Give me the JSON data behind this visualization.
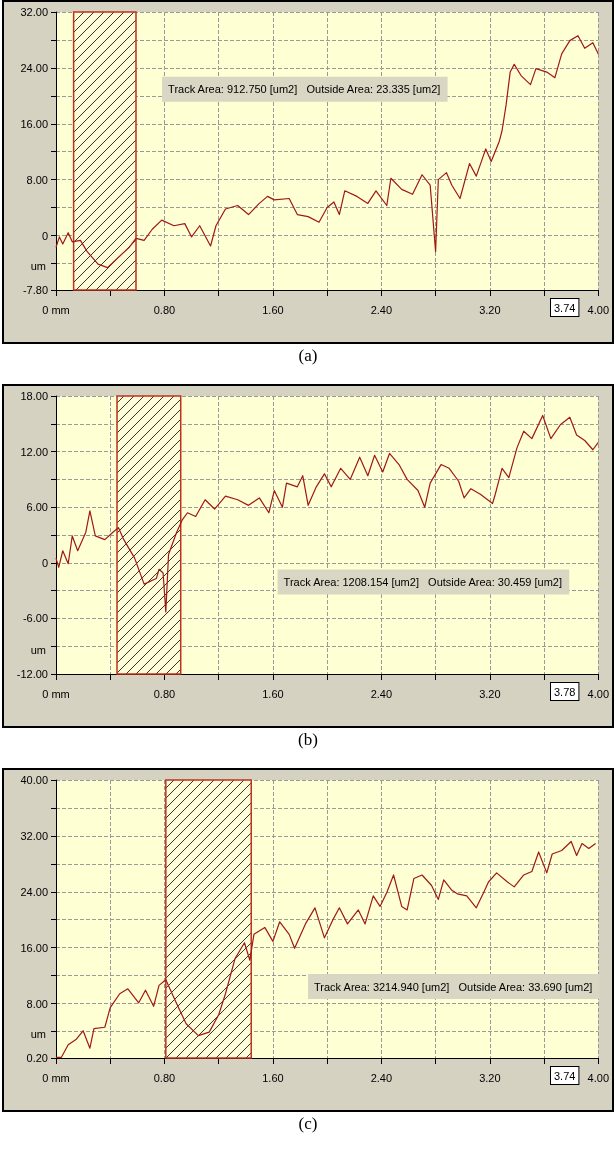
{
  "chart_data": [
    {
      "type": "line",
      "title": "(a)",
      "ylabel": "um",
      "xlim": [
        0,
        4
      ],
      "ylim": [
        -7.8,
        32
      ],
      "xticks": [
        {
          "value": 0,
          "label": "0 mm"
        },
        {
          "value": 0.4,
          "label": null
        },
        {
          "value": 0.8,
          "label": "0.80"
        },
        {
          "value": 1.2,
          "label": null
        },
        {
          "value": 1.6,
          "label": "1.60"
        },
        {
          "value": 2.0,
          "label": null
        },
        {
          "value": 2.4,
          "label": "2.40"
        },
        {
          "value": 2.8,
          "label": null
        },
        {
          "value": 3.2,
          "label": "3.20"
        },
        {
          "value": 3.6,
          "label": null
        },
        {
          "value": 4.0,
          "label": "4.00"
        }
      ],
      "yticks": [
        {
          "value": -7.8,
          "label": "-7.80"
        },
        {
          "value": -4,
          "label": null
        },
        0,
        {
          "value": 4,
          "label": null
        },
        {
          "value": 8,
          "label": "8.00"
        },
        {
          "value": 12,
          "label": null
        },
        {
          "value": 16,
          "label": "16.00"
        },
        {
          "value": 20,
          "label": null
        },
        {
          "value": 24,
          "label": "24.00"
        },
        {
          "value": 28,
          "label": null
        },
        {
          "value": 32,
          "label": "32.00"
        }
      ],
      "grid": true,
      "marker": "none",
      "line_style": "solid",
      "bands": [
        {
          "axis": "x",
          "from": 0.13,
          "to": 0.59,
          "color": "#c03020"
        }
      ],
      "annotations": [
        "Track Area: 912.750 [um2]   Outside Area: 23.335 [um2]",
        "3.74"
      ],
      "series": [
        {
          "color": "#a01818",
          "x": [
            0,
            0.025,
            0.05,
            0.09,
            0.12,
            0.18,
            0.23,
            0.31,
            0.38,
            0.45,
            0.54,
            0.59,
            0.65,
            0.71,
            0.78,
            0.87,
            0.95,
            1.0,
            1.06,
            1.14,
            1.18,
            1.25,
            1.34,
            1.42,
            1.5,
            1.56,
            1.61,
            1.72,
            1.78,
            1.86,
            1.94,
            2.0,
            2.05,
            2.09,
            2.13,
            2.22,
            2.3,
            2.36,
            2.44,
            2.47,
            2.55,
            2.63,
            2.7,
            2.76,
            2.8,
            2.82,
            2.88,
            2.92,
            2.98,
            3.05,
            3.1,
            3.17,
            3.21,
            3.27,
            3.29,
            3.32,
            3.35,
            3.38,
            3.43,
            3.5,
            3.54,
            3.62,
            3.68,
            3.73,
            3.79,
            3.85,
            3.9,
            3.96,
            4.0
          ],
          "values": [
            -1.7,
            -0.2,
            -1.2,
            0.4,
            -0.9,
            -0.7,
            -2.3,
            -4.1,
            -4.6,
            -3.3,
            -1.7,
            -0.4,
            -0.7,
            0.9,
            2.2,
            1.4,
            1.7,
            -0.2,
            1.4,
            -1.5,
            1.4,
            3.8,
            4.3,
            3.0,
            4.6,
            5.6,
            5.1,
            5.3,
            3.0,
            2.7,
            1.9,
            4.0,
            4.8,
            3.0,
            6.4,
            5.6,
            4.6,
            6.4,
            4.3,
            8.2,
            6.6,
            5.9,
            8.7,
            7.2,
            -2.3,
            8.0,
            9.0,
            7.2,
            5.3,
            10.3,
            8.5,
            12.4,
            10.6,
            13.5,
            15.0,
            18.7,
            23.4,
            24.5,
            22.9,
            21.6,
            23.9,
            23.4,
            22.6,
            26.0,
            27.9,
            28.6,
            26.8,
            27.6,
            26.0
          ]
        }
      ]
    },
    {
      "type": "line",
      "title": "(b)",
      "ylabel": "um",
      "xlim": [
        0,
        4
      ],
      "ylim": [
        -12,
        18
      ],
      "xticks": [
        {
          "value": 0,
          "label": "0 mm"
        },
        {
          "value": 0.4,
          "label": null
        },
        {
          "value": 0.8,
          "label": "0.80"
        },
        {
          "value": 1.2,
          "label": null
        },
        {
          "value": 1.6,
          "label": "1.60"
        },
        {
          "value": 2.0,
          "label": null
        },
        {
          "value": 2.4,
          "label": "2.40"
        },
        {
          "value": 2.8,
          "label": null
        },
        {
          "value": 3.2,
          "label": "3.20"
        },
        {
          "value": 3.6,
          "label": null
        },
        {
          "value": 4.0,
          "label": "4.00"
        }
      ],
      "yticks": [
        {
          "value": -12,
          "label": "-12.00"
        },
        {
          "value": -9,
          "label": null
        },
        {
          "value": -6,
          "label": "-6.00"
        },
        {
          "value": -3,
          "label": null
        },
        0,
        {
          "value": 3,
          "label": null
        },
        {
          "value": 6,
          "label": "6.00"
        },
        {
          "value": 9,
          "label": null
        },
        {
          "value": 12,
          "label": "12.00"
        },
        {
          "value": 15,
          "label": null
        },
        {
          "value": 18,
          "label": "18.00"
        }
      ],
      "grid": true,
      "marker": "none",
      "line_style": "solid",
      "bands": [
        {
          "axis": "x",
          "from": 0.45,
          "to": 0.92,
          "color": "#c03020"
        }
      ],
      "annotations": [
        "Track Area: 1208.154 [um2]   Outside Area: 30.459 [um2]",
        "3.78"
      ],
      "series": [
        {
          "color": "#a01818",
          "x": [
            0,
            0.02,
            0.05,
            0.09,
            0.12,
            0.16,
            0.22,
            0.25,
            0.29,
            0.36,
            0.42,
            0.46,
            0.5,
            0.58,
            0.65,
            0.74,
            0.76,
            0.79,
            0.81,
            0.83,
            0.89,
            0.93,
            0.97,
            1.03,
            1.1,
            1.17,
            1.25,
            1.34,
            1.42,
            1.5,
            1.57,
            1.61,
            1.67,
            1.7,
            1.78,
            1.82,
            1.86,
            1.92,
            1.98,
            2.03,
            2.1,
            2.17,
            2.24,
            2.3,
            2.35,
            2.41,
            2.46,
            2.53,
            2.59,
            2.67,
            2.72,
            2.76,
            2.84,
            2.9,
            2.97,
            3.01,
            3.06,
            3.13,
            3.22,
            3.24,
            3.29,
            3.34,
            3.4,
            3.45,
            3.51,
            3.59,
            3.65,
            3.72,
            3.79,
            3.84,
            3.9,
            3.96,
            4.0
          ],
          "values": [
            0.5,
            -0.5,
            1.3,
            -0.1,
            2.9,
            1.3,
            3.3,
            5.6,
            2.9,
            2.5,
            3.3,
            3.8,
            2.5,
            0.5,
            -2.3,
            -1.7,
            -0.7,
            -1.1,
            -5.3,
            0.9,
            3.3,
            4.6,
            5.4,
            5.0,
            6.8,
            5.8,
            7.2,
            6.8,
            6.2,
            7.0,
            5.4,
            7.8,
            6.0,
            8.6,
            8.2,
            9.4,
            6.2,
            8.2,
            9.6,
            8.2,
            10.2,
            9.0,
            11.4,
            9.4,
            11.6,
            9.8,
            11.8,
            10.6,
            9.0,
            7.8,
            6.0,
            8.6,
            10.6,
            10.2,
            8.8,
            7.0,
            8.0,
            7.4,
            6.4,
            7.4,
            10.2,
            9.2,
            12.4,
            14.2,
            13.4,
            15.9,
            13.4,
            14.9,
            15.7,
            13.8,
            13.2,
            12.2,
            13.0
          ]
        }
      ]
    },
    {
      "type": "line",
      "title": "(c)",
      "ylabel": "um",
      "xlim": [
        0,
        4
      ],
      "ylim": [
        0.2,
        40
      ],
      "xticks": [
        {
          "value": 0,
          "label": "0 mm"
        },
        {
          "value": 0.4,
          "label": null
        },
        {
          "value": 0.8,
          "label": "0.80"
        },
        {
          "value": 1.2,
          "label": null
        },
        {
          "value": 1.6,
          "label": "1.60"
        },
        {
          "value": 2.0,
          "label": null
        },
        {
          "value": 2.4,
          "label": "2.40"
        },
        {
          "value": 2.8,
          "label": null
        },
        {
          "value": 3.2,
          "label": "3.20"
        },
        {
          "value": 3.6,
          "label": null
        },
        {
          "value": 4.0,
          "label": "4.00"
        }
      ],
      "yticks": [
        {
          "value": 0.2,
          "label": "0.20"
        },
        {
          "value": 4,
          "label": null
        },
        {
          "value": 8,
          "label": "8.00"
        },
        {
          "value": 12,
          "label": null
        },
        {
          "value": 16,
          "label": "16.00"
        },
        {
          "value": 20,
          "label": null
        },
        {
          "value": 24,
          "label": "24.00"
        },
        {
          "value": 28,
          "label": null
        },
        {
          "value": 32,
          "label": "32.00"
        },
        {
          "value": 36,
          "label": null
        },
        {
          "value": 40,
          "label": "40.00"
        }
      ],
      "grid": true,
      "marker": "none",
      "line_style": "solid",
      "bands": [
        {
          "axis": "x",
          "from": 0.81,
          "to": 1.44,
          "color": "#c03020"
        }
      ],
      "annotations": [
        "Track Area: 3214.940 [um2]   Outside Area: 33.690 [um2]",
        "3.74"
      ],
      "series": [
        {
          "color": "#a01818",
          "x": [
            0,
            0.04,
            0.09,
            0.15,
            0.2,
            0.25,
            0.28,
            0.36,
            0.4,
            0.47,
            0.53,
            0.61,
            0.66,
            0.72,
            0.76,
            0.81,
            0.88,
            0.96,
            1.05,
            1.13,
            1.2,
            1.25,
            1.32,
            1.39,
            1.43,
            1.46,
            1.54,
            1.6,
            1.65,
            1.72,
            1.76,
            1.84,
            1.91,
            1.98,
            2.04,
            2.09,
            2.15,
            2.23,
            2.28,
            2.34,
            2.39,
            2.44,
            2.49,
            2.55,
            2.59,
            2.64,
            2.7,
            2.77,
            2.82,
            2.86,
            2.92,
            2.96,
            3.03,
            3.1,
            3.15,
            3.19,
            3.25,
            3.33,
            3.38,
            3.45,
            3.51,
            3.56,
            3.62,
            3.66,
            3.73,
            3.8,
            3.84,
            3.88,
            3.93,
            3.98
          ],
          "values": [
            0.3,
            0.3,
            2.1,
            2.9,
            4.1,
            1.6,
            4.4,
            4.6,
            7.4,
            9.4,
            10.1,
            8.1,
            9.9,
            7.6,
            10.6,
            11.4,
            8.4,
            5.1,
            3.4,
            3.9,
            6.4,
            9.4,
            14.4,
            16.7,
            14.2,
            17.9,
            18.9,
            16.9,
            19.7,
            17.9,
            15.9,
            19.4,
            21.7,
            17.4,
            19.9,
            21.7,
            19.4,
            21.4,
            19.4,
            23.4,
            21.9,
            23.9,
            26.4,
            21.9,
            21.4,
            25.9,
            26.4,
            24.9,
            22.9,
            25.7,
            24.2,
            23.7,
            23.4,
            21.7,
            23.7,
            25.4,
            26.7,
            25.4,
            24.7,
            26.4,
            26.9,
            29.7,
            26.7,
            29.4,
            29.9,
            31.2,
            29.2,
            30.9,
            30.2,
            30.9
          ]
        }
      ]
    }
  ]
}
